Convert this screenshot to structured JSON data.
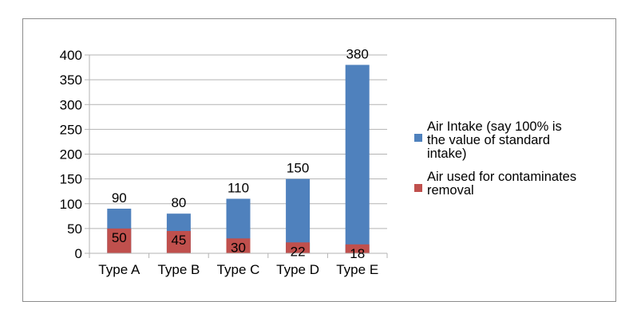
{
  "chart_data": {
    "type": "bar",
    "stacked": false,
    "overlapped": true,
    "categories": [
      "Type A",
      "Type B",
      "Type C",
      "Type D",
      "Type E"
    ],
    "series": [
      {
        "name": "Air Intake (say 100% is the value of standard intake)",
        "legend_lines": [
          "Air Intake (say 100% is",
          "the value of standard",
          "intake)"
        ],
        "color": "#4f81bd",
        "values": [
          90,
          80,
          110,
          150,
          380
        ]
      },
      {
        "name": "Air used for contaminates removal",
        "legend_lines": [
          "Air used for contaminates",
          "removal"
        ],
        "color": "#c0504d",
        "values": [
          50,
          45,
          30,
          22,
          18
        ]
      }
    ],
    "ylim": [
      0,
      400
    ],
    "yticks": [
      0,
      50,
      100,
      150,
      200,
      250,
      300,
      350,
      400
    ],
    "grid": true,
    "legend_position": "right",
    "title": "",
    "xlabel": "",
    "ylabel": ""
  }
}
